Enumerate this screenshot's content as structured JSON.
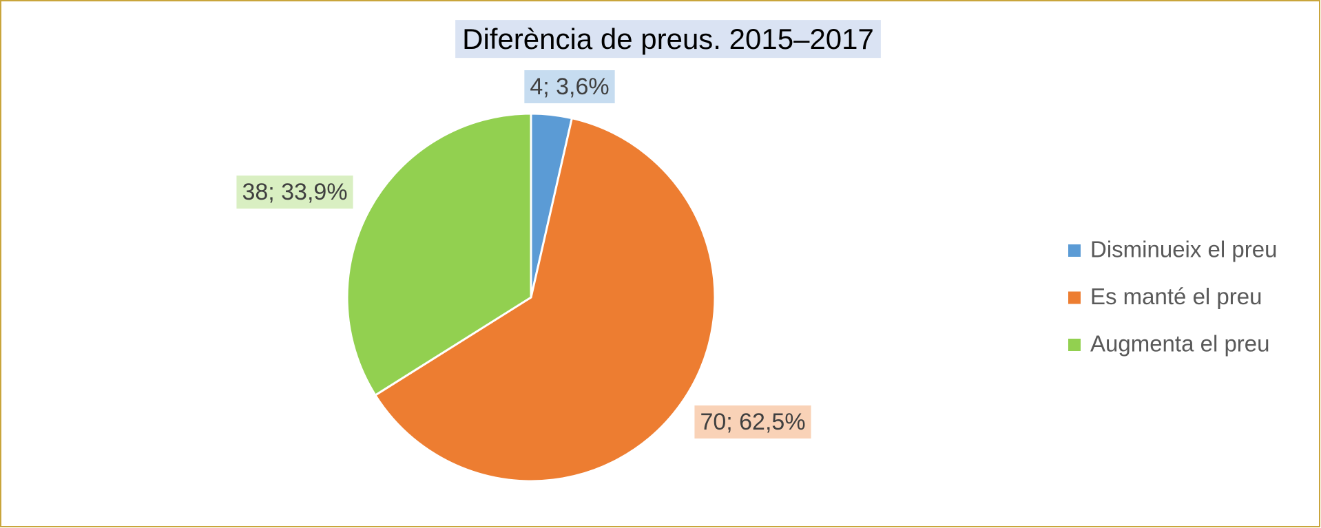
{
  "chart_data": {
    "type": "pie",
    "title": "Diferència de preus. 2015–2017",
    "categories": [
      "Disminueix el preu",
      "Es manté el preu",
      "Augmenta el preu"
    ],
    "values": [
      4,
      70,
      38
    ],
    "value_labels": [
      "4; 3,6%",
      "70; 62,5%",
      "38; 33,9%"
    ],
    "colors": [
      "#5b9bd5",
      "#ed7d31",
      "#92d050"
    ],
    "legend": "right"
  }
}
